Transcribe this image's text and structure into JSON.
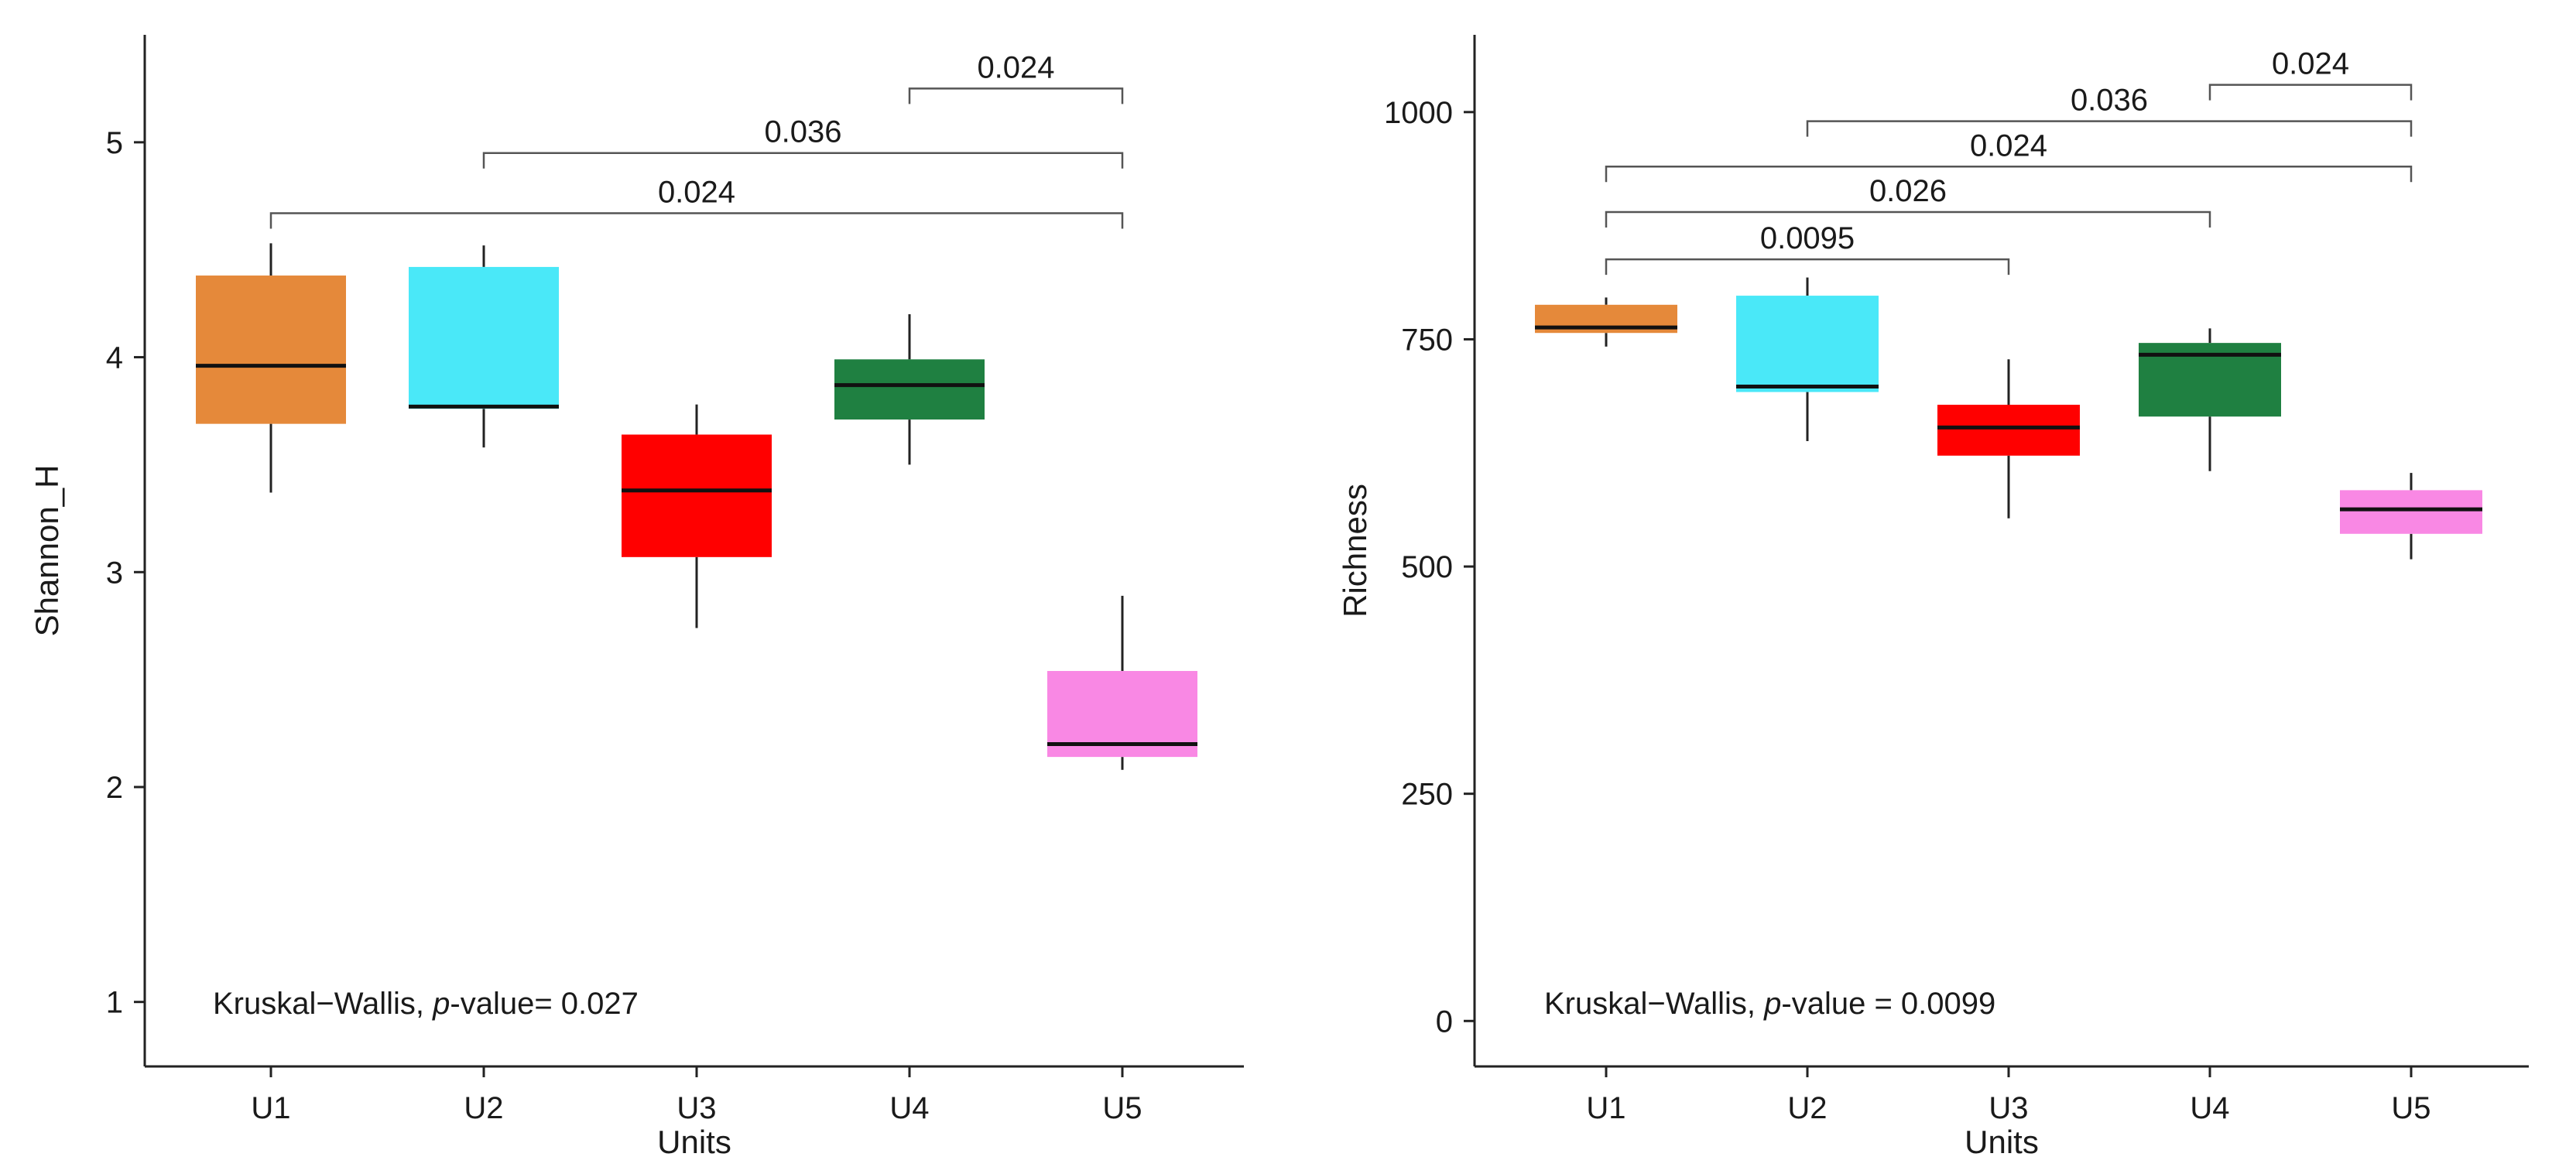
{
  "chart_data": [
    {
      "type": "box",
      "xlabel": "Units",
      "ylabel": "Shannon_H",
      "categories": [
        "U1",
        "U2",
        "U3",
        "U4",
        "U5"
      ],
      "ylim": [
        0.7,
        5.5
      ],
      "yticks": [
        1,
        2,
        3,
        4,
        5
      ],
      "colors": [
        "#e5893a",
        "#4ae8f8",
        "#ff0000",
        "#1f8041",
        "#f988e4"
      ],
      "boxes": [
        {
          "unit": "U1",
          "min": 3.37,
          "q1": 3.69,
          "median": 3.96,
          "q3": 4.38,
          "max": 4.53
        },
        {
          "unit": "U2",
          "min": 3.58,
          "q1": 3.76,
          "median": 3.77,
          "q3": 4.42,
          "max": 4.52
        },
        {
          "unit": "U3",
          "min": 2.74,
          "q1": 3.07,
          "median": 3.38,
          "q3": 3.64,
          "max": 3.78
        },
        {
          "unit": "U4",
          "min": 3.5,
          "q1": 3.71,
          "median": 3.87,
          "q3": 3.99,
          "max": 4.2
        },
        {
          "unit": "U5",
          "min": 2.08,
          "q1": 2.14,
          "median": 2.2,
          "q3": 2.54,
          "max": 2.89
        }
      ],
      "comparisons": [
        {
          "from": "U4",
          "to": "U5",
          "label": "0.024",
          "y": 5.25
        },
        {
          "from": "U2",
          "to": "U5",
          "label": "0.036",
          "y": 4.95
        },
        {
          "from": "U1",
          "to": "U5",
          "label": "0.024",
          "y": 4.67
        }
      ],
      "note": {
        "prefix": "Kruskal−Wallis, ",
        "italic": "p",
        "suffix": "-value= 0.027"
      }
    },
    {
      "type": "box",
      "xlabel": "Units",
      "ylabel": "Richness",
      "categories": [
        "U1",
        "U2",
        "U3",
        "U4",
        "U5"
      ],
      "ylim": [
        -50,
        1085
      ],
      "yticks": [
        0,
        250,
        500,
        750,
        1000
      ],
      "colors": [
        "#e5893a",
        "#4ae8f8",
        "#ff0000",
        "#1f8041",
        "#f988e4"
      ],
      "boxes": [
        {
          "unit": "U1",
          "min": 742,
          "q1": 757,
          "median": 763,
          "q3": 788,
          "max": 796
        },
        {
          "unit": "U2",
          "min": 638,
          "q1": 692,
          "median": 698,
          "q3": 798,
          "max": 818
        },
        {
          "unit": "U3",
          "min": 553,
          "q1": 622,
          "median": 653,
          "q3": 678,
          "max": 728
        },
        {
          "unit": "U4",
          "min": 605,
          "q1": 665,
          "median": 733,
          "q3": 746,
          "max": 762
        },
        {
          "unit": "U5",
          "min": 508,
          "q1": 536,
          "median": 563,
          "q3": 584,
          "max": 603
        }
      ],
      "comparisons": [
        {
          "from": "U4",
          "to": "U5",
          "label": "0.024",
          "y": 1030
        },
        {
          "from": "U2",
          "to": "U5",
          "label": "0.036",
          "y": 990
        },
        {
          "from": "U1",
          "to": "U5",
          "label": "0.024",
          "y": 940
        },
        {
          "from": "U1",
          "to": "U4",
          "label": "0.026",
          "y": 890
        },
        {
          "from": "U1",
          "to": "U3",
          "label": "0.0095",
          "y": 838
        }
      ],
      "note": {
        "prefix": "Kruskal−Wallis, ",
        "italic": "p",
        "suffix": "-value = 0.0099"
      }
    }
  ]
}
